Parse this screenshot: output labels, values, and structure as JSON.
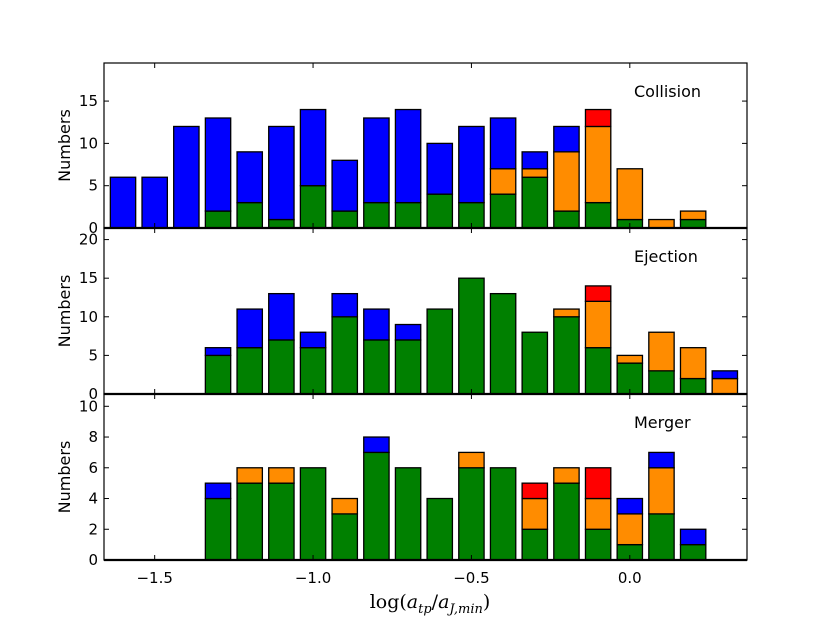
{
  "chart_data": [
    {
      "type": "bar",
      "stacked": true,
      "annotation": "Collision",
      "ylabel": "Numbers",
      "ylim": [
        0,
        19.5
      ],
      "yticks": [
        0,
        5,
        10,
        15
      ],
      "xlim": [
        -1.66,
        0.37
      ],
      "x": [
        -1.6,
        -1.5,
        -1.4,
        -1.3,
        -1.2,
        -1.1,
        -1.0,
        -0.9,
        -0.8,
        -0.7,
        -0.6,
        -0.5,
        -0.4,
        -0.3,
        -0.2,
        -0.1,
        0.0,
        0.1,
        0.2
      ],
      "series": [
        {
          "color": "#008000",
          "values": [
            0,
            0,
            0,
            2,
            3,
            1,
            5,
            2,
            3,
            3,
            4,
            3,
            4,
            6,
            2,
            3,
            1,
            0,
            1
          ]
        },
        {
          "color": "#ff8c00",
          "values": [
            0,
            0,
            0,
            0,
            0,
            0,
            0,
            0,
            0,
            0,
            0,
            0,
            3,
            1,
            7,
            9,
            6,
            1,
            1
          ]
        },
        {
          "color": "#0000ff",
          "values": [
            6,
            6,
            12,
            11,
            6,
            11,
            9,
            6,
            10,
            11,
            6,
            9,
            6,
            2,
            3,
            0,
            0,
            0,
            0
          ]
        },
        {
          "color": "#ff0000",
          "values": [
            0,
            0,
            0,
            0,
            0,
            0,
            0,
            0,
            0,
            0,
            0,
            0,
            0,
            0,
            0,
            2,
            0,
            0,
            0
          ]
        }
      ]
    },
    {
      "type": "bar",
      "stacked": true,
      "annotation": "Ejection",
      "ylabel": "Numbers",
      "ylim": [
        0,
        21.5
      ],
      "yticks": [
        0,
        5,
        10,
        15,
        20
      ],
      "xlim": [
        -1.66,
        0.37
      ],
      "x": [
        -1.3,
        -1.2,
        -1.1,
        -1.0,
        -0.9,
        -0.8,
        -0.7,
        -0.6,
        -0.5,
        -0.4,
        -0.3,
        -0.2,
        -0.1,
        0.0,
        0.1,
        0.2,
        0.3
      ],
      "series": [
        {
          "color": "#008000",
          "values": [
            5,
            6,
            7,
            6,
            10,
            7,
            7,
            11,
            15,
            13,
            8,
            10,
            6,
            4,
            3,
            2,
            0
          ]
        },
        {
          "color": "#ff8c00",
          "values": [
            0,
            0,
            0,
            0,
            0,
            0,
            0,
            0,
            0,
            0,
            0,
            1,
            6,
            1,
            5,
            4,
            2
          ]
        },
        {
          "color": "#0000ff",
          "values": [
            1,
            5,
            6,
            2,
            3,
            4,
            2,
            0,
            0,
            0,
            0,
            0,
            0,
            0,
            0,
            0,
            1
          ]
        },
        {
          "color": "#ff0000",
          "values": [
            0,
            0,
            0,
            0,
            0,
            0,
            0,
            0,
            0,
            0,
            0,
            0,
            2,
            0,
            0,
            0,
            0
          ]
        }
      ]
    },
    {
      "type": "bar",
      "stacked": true,
      "annotation": "Merger",
      "ylabel": "Numbers",
      "xlabel": "log(a_tp/a_J,min)",
      "ylim": [
        0,
        10.8
      ],
      "yticks": [
        0,
        2,
        4,
        6,
        8,
        10
      ],
      "xlim": [
        -1.66,
        0.37
      ],
      "xticks": [
        -1.5,
        -1.0,
        -0.5,
        0.0
      ],
      "xtick_labels": [
        "−1.5",
        "−1.0",
        "−0.5",
        "0.0"
      ],
      "x": [
        -1.3,
        -1.2,
        -1.1,
        -1.0,
        -0.9,
        -0.8,
        -0.7,
        -0.6,
        -0.5,
        -0.4,
        -0.3,
        -0.2,
        -0.1,
        0.0,
        0.1,
        0.2
      ],
      "series": [
        {
          "color": "#008000",
          "values": [
            4,
            5,
            5,
            6,
            3,
            7,
            6,
            4,
            6,
            6,
            2,
            5,
            2,
            1,
            3,
            1
          ]
        },
        {
          "color": "#ff8c00",
          "values": [
            0,
            1,
            1,
            0,
            1,
            0,
            0,
            0,
            1,
            0,
            2,
            1,
            2,
            2,
            3,
            0
          ]
        },
        {
          "color": "#0000ff",
          "values": [
            1,
            0,
            0,
            0,
            0,
            1,
            0,
            0,
            0,
            0,
            0,
            0,
            0,
            1,
            1,
            1
          ]
        },
        {
          "color": "#ff0000",
          "values": [
            0,
            0,
            0,
            0,
            0,
            0,
            0,
            0,
            0,
            0,
            1,
            0,
            2,
            0,
            0,
            0
          ]
        }
      ]
    }
  ]
}
